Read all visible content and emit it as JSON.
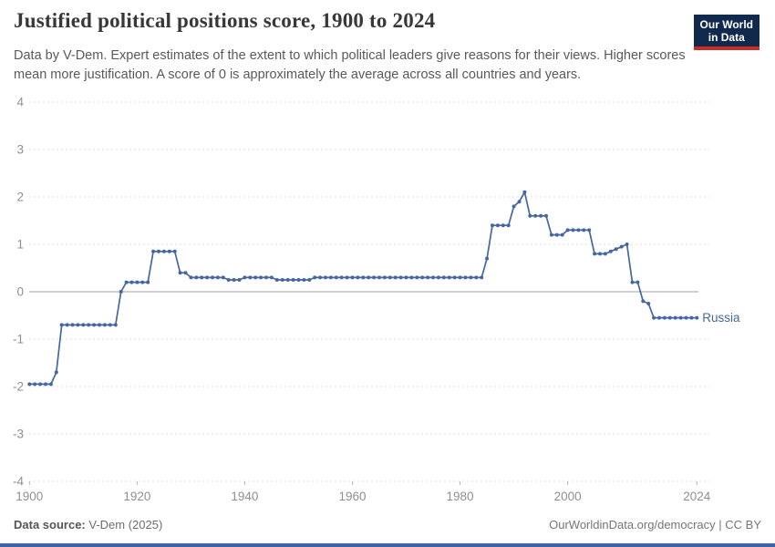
{
  "header": {
    "title": "Justified political positions score, 1900 to 2024",
    "subtitle": "Data by V-Dem. Expert estimates of the extent to which political leaders give reasons for their views. Higher scores mean more justification. A score of 0 is approximately the average across all countries and years.",
    "logo": {
      "line1": "Our World",
      "line2": "in Data",
      "bg_color": "#12294E",
      "accent_color": "#CB2D24"
    }
  },
  "chart_data": {
    "type": "line",
    "title": "Justified political positions score, 1900 to 2024",
    "xlabel": "",
    "ylabel": "",
    "xlim": [
      1900,
      2024
    ],
    "ylim": [
      -4,
      4
    ],
    "grid": "horizontal-dashed",
    "zero_line": true,
    "x_ticks": [
      1900,
      1920,
      1940,
      1960,
      1980,
      2000,
      2024
    ],
    "y_ticks": [
      4,
      3,
      2,
      1,
      0,
      -1,
      -2,
      -3,
      -4
    ],
    "start_year": 1900,
    "end_year": 2024,
    "series": [
      {
        "name": "Russia",
        "color": "#4666A0",
        "values": [
          -1.95,
          -1.95,
          -1.95,
          -1.95,
          -1.95,
          -1.7,
          -0.7,
          -0.7,
          -0.7,
          -0.7,
          -0.7,
          -0.7,
          -0.7,
          -0.7,
          -0.7,
          -0.7,
          -0.7,
          0.0,
          0.2,
          0.2,
          0.2,
          0.2,
          0.2,
          0.85,
          0.85,
          0.85,
          0.85,
          0.85,
          0.4,
          0.4,
          0.3,
          0.3,
          0.3,
          0.3,
          0.3,
          0.3,
          0.3,
          0.25,
          0.25,
          0.25,
          0.3,
          0.3,
          0.3,
          0.3,
          0.3,
          0.3,
          0.25,
          0.25,
          0.25,
          0.25,
          0.25,
          0.25,
          0.25,
          0.3,
          0.3,
          0.3,
          0.3,
          0.3,
          0.3,
          0.3,
          0.3,
          0.3,
          0.3,
          0.3,
          0.3,
          0.3,
          0.3,
          0.3,
          0.3,
          0.3,
          0.3,
          0.3,
          0.3,
          0.3,
          0.3,
          0.3,
          0.3,
          0.3,
          0.3,
          0.3,
          0.3,
          0.3,
          0.3,
          0.3,
          0.3,
          0.7,
          1.4,
          1.4,
          1.4,
          1.4,
          1.8,
          1.9,
          2.1,
          1.6,
          1.6,
          1.6,
          1.6,
          1.2,
          1.2,
          1.2,
          1.3,
          1.3,
          1.3,
          1.3,
          1.3,
          0.8,
          0.8,
          0.8,
          0.85,
          0.9,
          0.95,
          1.0,
          0.2,
          0.2,
          -0.2,
          -0.25,
          -0.55,
          -0.55,
          -0.55,
          -0.55,
          -0.55,
          -0.55,
          -0.55,
          -0.55,
          -0.55
        ]
      }
    ],
    "end_label": "Russia",
    "colors": {
      "gridline": "#dcdcdc",
      "zero_line": "#a1a1a1",
      "axis_text": "#8f8f8f"
    }
  },
  "footer": {
    "source_label": "Data source:",
    "source_value": " V-Dem (2025)",
    "right_text": "OurWorldinData.org/democracy | CC BY"
  }
}
